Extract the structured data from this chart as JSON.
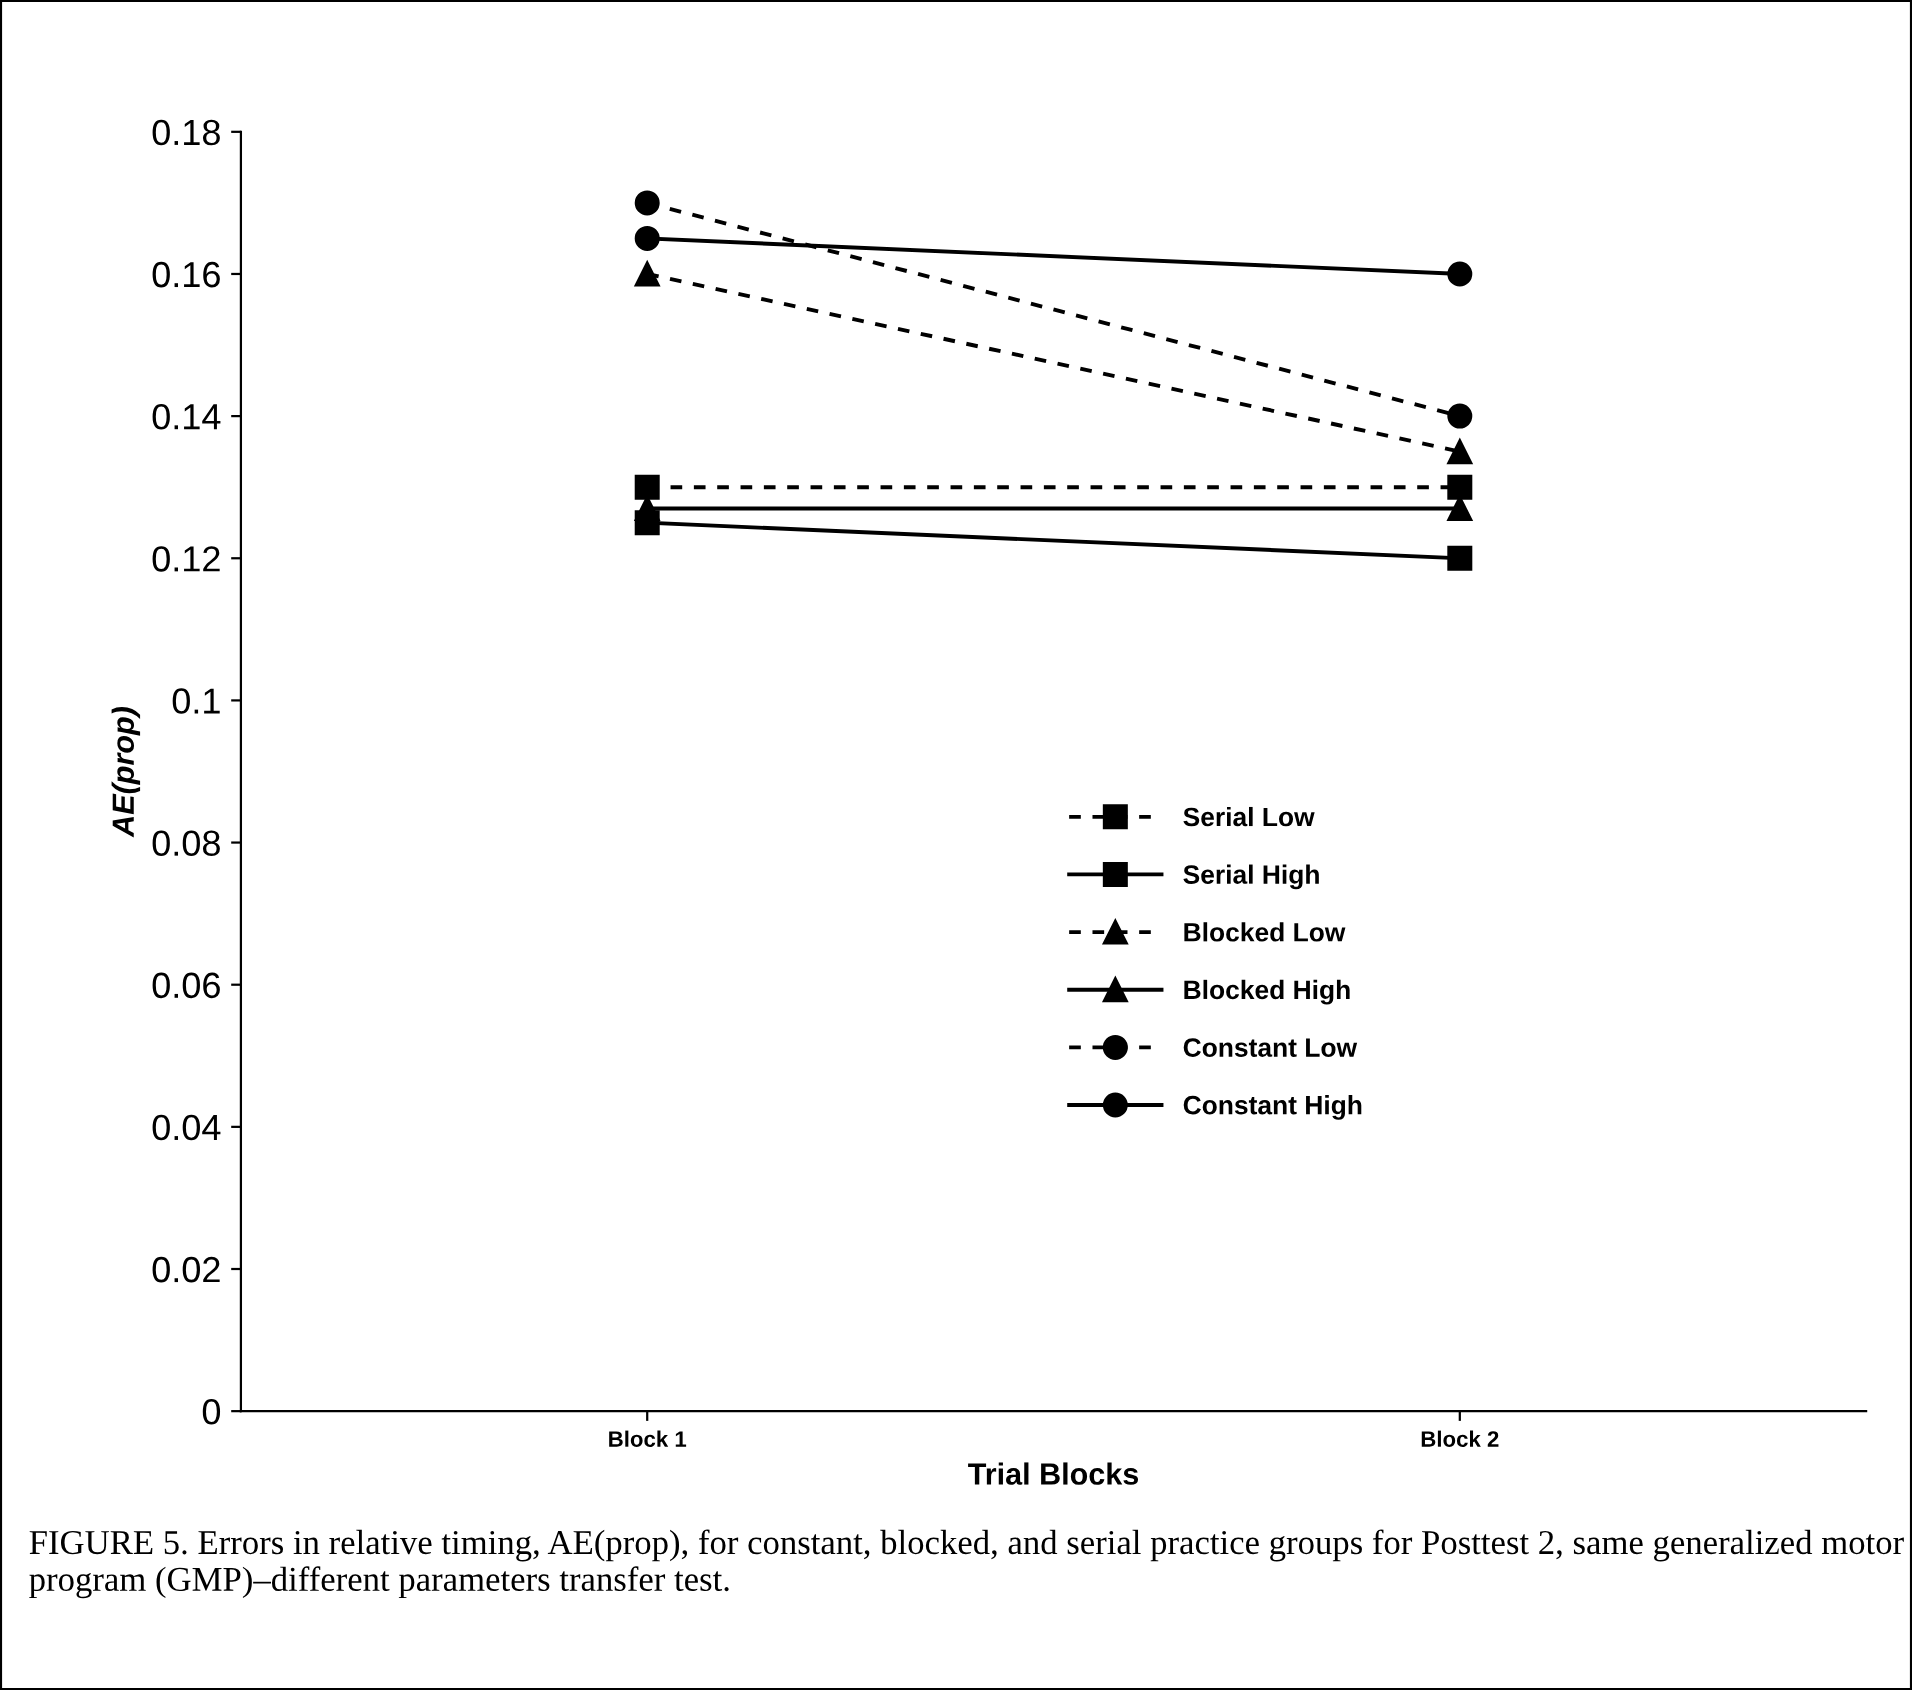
{
  "chart_data": {
    "type": "line",
    "xlabel": "Trial Blocks",
    "ylabel": "AE(prop)",
    "categories": [
      "Block 1",
      "Block 2"
    ],
    "series": [
      {
        "name": "Serial Low",
        "color": "#000000",
        "marker": "square",
        "line_style": "dashed",
        "values": [
          0.13,
          0.13
        ]
      },
      {
        "name": "Serial High",
        "color": "#000000",
        "marker": "square",
        "line_style": "solid",
        "values": [
          0.125,
          0.12
        ]
      },
      {
        "name": "Blocked Low",
        "color": "#000000",
        "marker": "triangle",
        "line_style": "dashed",
        "values": [
          0.16,
          0.135
        ]
      },
      {
        "name": "Blocked High",
        "color": "#000000",
        "marker": "triangle",
        "line_style": "solid",
        "values": [
          0.127,
          0.127
        ]
      },
      {
        "name": "Constant Low",
        "color": "#000000",
        "marker": "circle",
        "line_style": "dashed",
        "values": [
          0.17,
          0.14
        ]
      },
      {
        "name": "Constant High",
        "color": "#000000",
        "marker": "circle",
        "line_style": "solid",
        "values": [
          0.165,
          0.16
        ]
      }
    ],
    "ylim": [
      0,
      0.18
    ],
    "yticks": [
      0,
      0.02,
      0.04,
      0.06,
      0.08,
      0.1,
      0.12,
      0.14,
      0.16,
      0.18
    ],
    "grid": false,
    "legend": "center",
    "annotations": [
      "FIGURE 5. Errors in relative timing, AE(prop), for constant, blocked, and serial practice groups for Posttest 2, same generalized motor program (GMP)–different parameters transfer test."
    ]
  }
}
